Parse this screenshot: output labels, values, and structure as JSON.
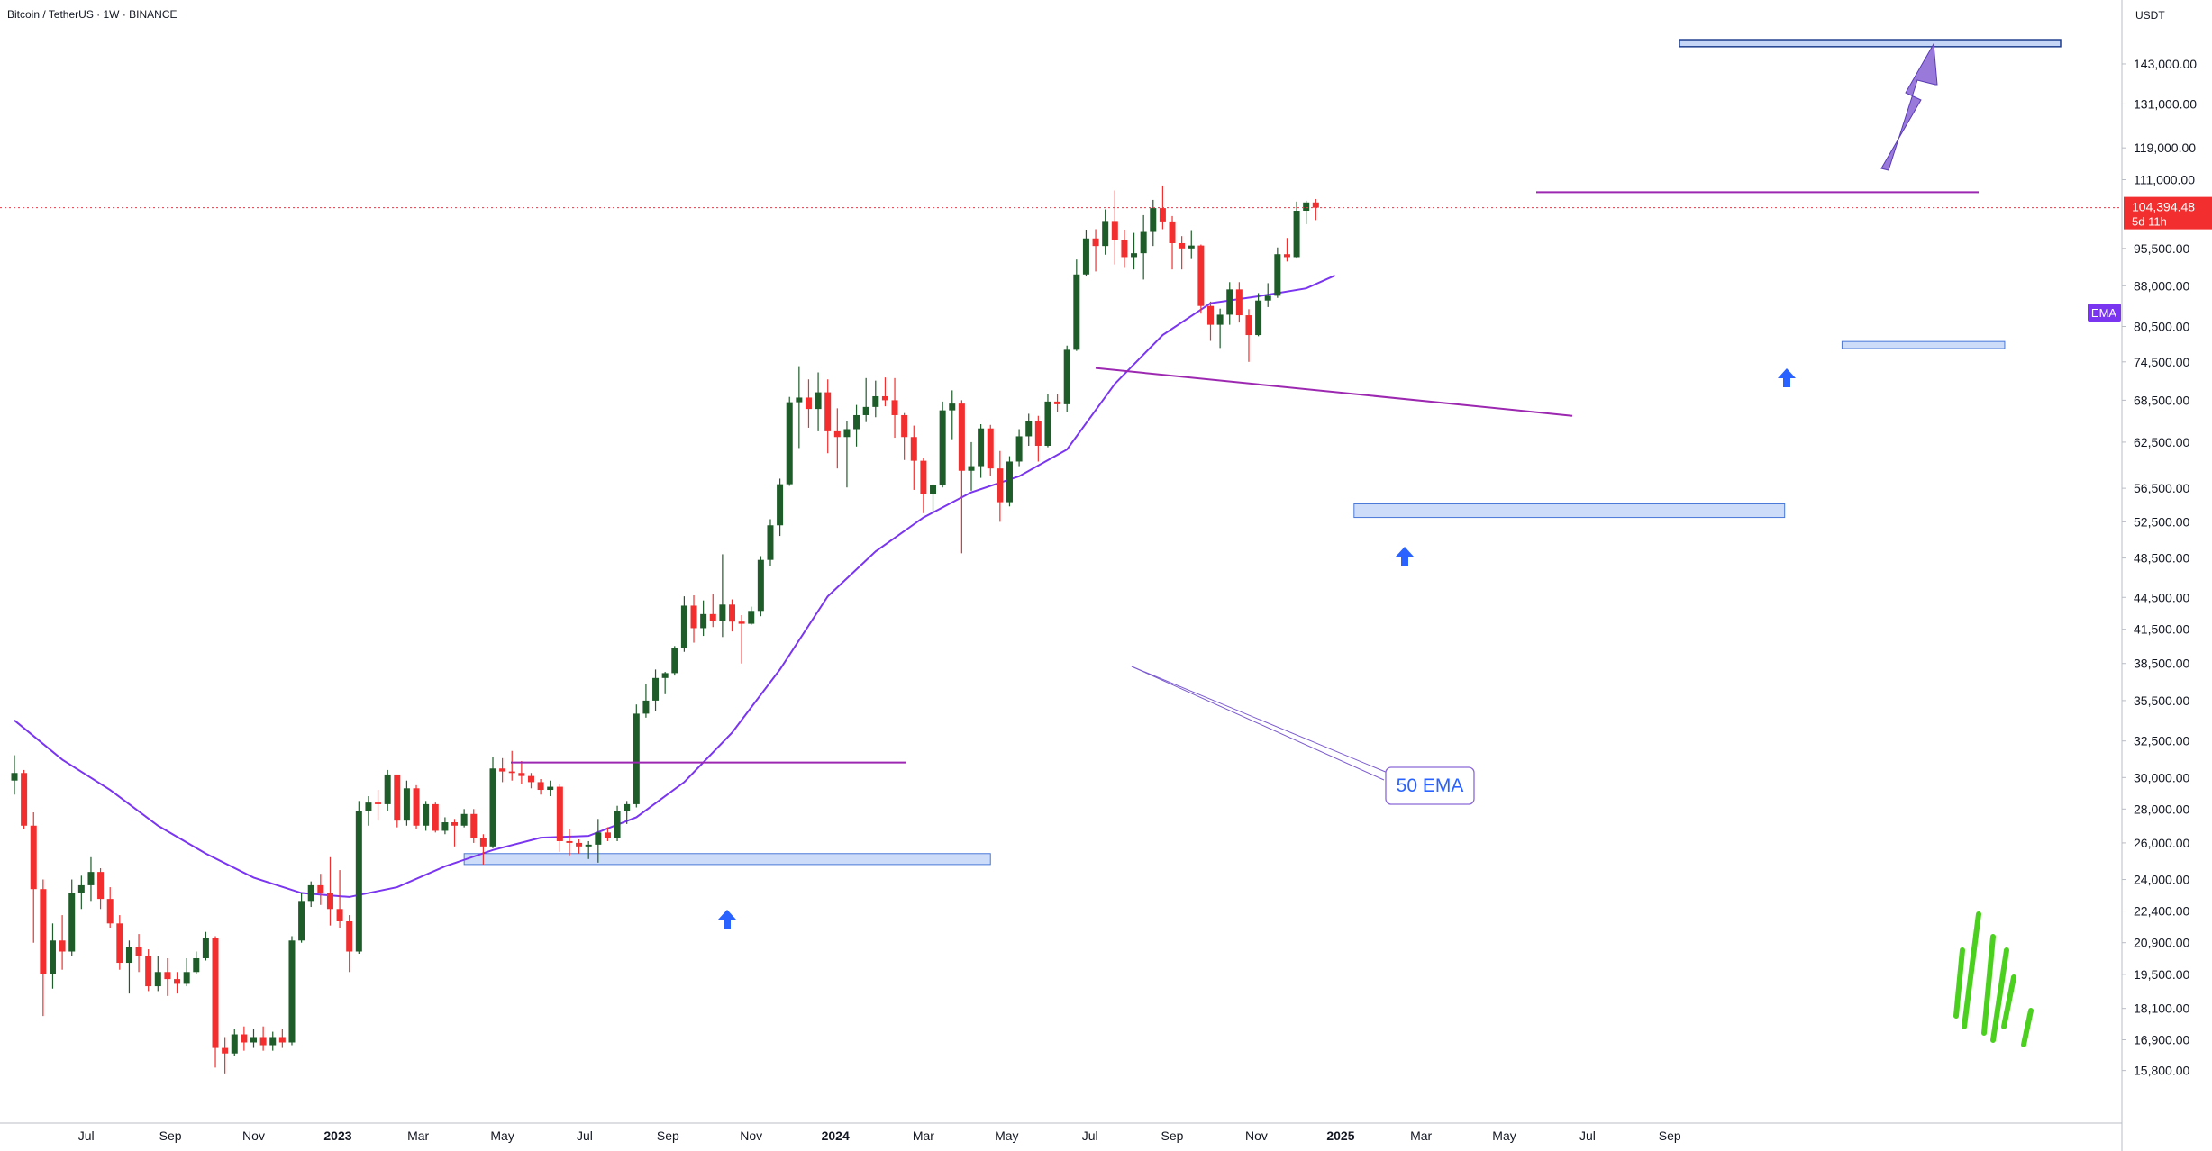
{
  "header": {
    "title": "Bitcoin / TetherUS · 1W · BINANCE"
  },
  "price_axis": {
    "currency": "USDT",
    "ticks": [
      "143,000.00",
      "131,000.00",
      "119,000.00",
      "111,000.00",
      "95,500.00",
      "88,000.00",
      "80,500.00",
      "74,500.00",
      "68,500.00",
      "62,500.00",
      "56,500.00",
      "52,500.00",
      "48,500.00",
      "44,500.00",
      "41,500.00",
      "38,500.00",
      "35,500.00",
      "32,500.00",
      "30,000.00",
      "28,000.00",
      "26,000.00",
      "24,000.00",
      "22,400.00",
      "20,900.00",
      "19,500.00",
      "18,100.00",
      "16,900.00",
      "15,800.00"
    ],
    "last_price_label": "104,394.48",
    "countdown_label": "5d 11h",
    "ema_tag": "EMA"
  },
  "time_axis": {
    "ticks": [
      "Jul",
      "Sep",
      "Nov",
      "2023",
      "Mar",
      "May",
      "Jul",
      "Sep",
      "Nov",
      "2024",
      "Mar",
      "May",
      "Jul",
      "Sep",
      "Nov",
      "2025",
      "Mar",
      "May",
      "Jul",
      "Sep"
    ],
    "bold_ticks": [
      "2023",
      "2024",
      "2025"
    ]
  },
  "annotations": {
    "ema_callout": "50 EMA"
  },
  "colors": {
    "up": "#1e5c2a",
    "down": "#f22e2e",
    "ema": "#7a35f0",
    "trendline": "#9c27b0",
    "zone_fill": "#bcd0f5",
    "zone_stroke": "#4a78d8",
    "support_arrow": "#2962ff",
    "target_arrow": "#8e6bd6",
    "price_line": "#f23645",
    "callout_text": "#2962ff",
    "watermark": "#4cd01f"
  },
  "chart_data": {
    "type": "candlestick",
    "scale": "log",
    "interval": "1W",
    "ylim": [
      15000,
      152000
    ],
    "last_price": 104394.48,
    "series": [
      {
        "name": "Bitcoin / TetherUS",
        "kind": "ohlc",
        "values": [
          [
            29800,
            31500,
            28900,
            30300
          ],
          [
            30300,
            30500,
            26800,
            27000
          ],
          [
            27000,
            27800,
            20900,
            23500
          ],
          [
            23500,
            24000,
            17800,
            19500
          ],
          [
            19500,
            21800,
            18900,
            21000
          ],
          [
            21000,
            22200,
            19700,
            20500
          ],
          [
            20500,
            24000,
            20300,
            23300
          ],
          [
            23300,
            24200,
            22500,
            23700
          ],
          [
            23700,
            25200,
            22900,
            24400
          ],
          [
            24400,
            24600,
            22500,
            23000
          ],
          [
            23000,
            23600,
            21600,
            21800
          ],
          [
            21800,
            22200,
            19700,
            20000
          ],
          [
            20000,
            21000,
            18700,
            20700
          ],
          [
            20700,
            21300,
            19600,
            20300
          ],
          [
            20300,
            20600,
            18800,
            19000
          ],
          [
            19000,
            20300,
            18800,
            19600
          ],
          [
            19600,
            20200,
            18600,
            19300
          ],
          [
            19300,
            19600,
            18700,
            19100
          ],
          [
            19100,
            20200,
            19000,
            19600
          ],
          [
            19600,
            20500,
            19500,
            20200
          ],
          [
            20200,
            21400,
            20100,
            21100
          ],
          [
            21100,
            21200,
            15900,
            16600
          ],
          [
            16600,
            17000,
            15700,
            16400
          ],
          [
            16400,
            17300,
            16300,
            17100
          ],
          [
            17100,
            17400,
            16500,
            16800
          ],
          [
            16800,
            17300,
            16600,
            17000
          ],
          [
            17000,
            17400,
            16500,
            16700
          ],
          [
            16700,
            17200,
            16500,
            17000
          ],
          [
            17000,
            17300,
            16600,
            16800
          ],
          [
            16800,
            21200,
            16700,
            21000
          ],
          [
            21000,
            23300,
            20900,
            22900
          ],
          [
            22900,
            23900,
            22600,
            23700
          ],
          [
            23700,
            24300,
            22700,
            23300
          ],
          [
            23300,
            25200,
            21700,
            22500
          ],
          [
            22500,
            24500,
            21600,
            21900
          ],
          [
            21900,
            22200,
            19600,
            20500
          ],
          [
            20500,
            28500,
            20400,
            27900
          ],
          [
            27900,
            28800,
            27000,
            28400
          ],
          [
            28400,
            29200,
            27300,
            28300
          ],
          [
            28300,
            30500,
            27900,
            30200
          ],
          [
            30200,
            30100,
            26900,
            27300
          ],
          [
            27300,
            29800,
            27000,
            29300
          ],
          [
            29300,
            29500,
            26800,
            27000
          ],
          [
            27000,
            28500,
            26700,
            28300
          ],
          [
            28300,
            28400,
            26600,
            26700
          ],
          [
            26700,
            27500,
            26500,
            27200
          ],
          [
            27200,
            27400,
            25800,
            27000
          ],
          [
            27000,
            28000,
            26900,
            27700
          ],
          [
            27700,
            28000,
            26000,
            26300
          ],
          [
            26300,
            26500,
            24800,
            25800
          ],
          [
            25800,
            31400,
            25700,
            30600
          ],
          [
            30600,
            31300,
            29700,
            30400
          ],
          [
            30400,
            31800,
            29800,
            30300
          ],
          [
            30300,
            31100,
            29600,
            30100
          ],
          [
            30100,
            30300,
            29300,
            29700
          ],
          [
            29700,
            29900,
            28900,
            29200
          ],
          [
            29200,
            29800,
            28800,
            29400
          ],
          [
            29400,
            29600,
            25500,
            26100
          ],
          [
            26100,
            26800,
            25300,
            26000
          ],
          [
            26000,
            26200,
            25400,
            25800
          ],
          [
            25800,
            26100,
            25100,
            25900
          ],
          [
            25900,
            27400,
            24900,
            26600
          ],
          [
            26600,
            26900,
            26100,
            26300
          ],
          [
            26300,
            28200,
            26100,
            27900
          ],
          [
            27900,
            28500,
            27100,
            28300
          ],
          [
            28300,
            35200,
            28100,
            34500
          ],
          [
            34500,
            36800,
            34200,
            35500
          ],
          [
            35500,
            38000,
            34700,
            37300
          ],
          [
            37300,
            37800,
            36000,
            37700
          ],
          [
            37700,
            40000,
            37500,
            39800
          ],
          [
            39800,
            44600,
            39500,
            43700
          ],
          [
            43700,
            44700,
            40300,
            41600
          ],
          [
            41600,
            44200,
            40900,
            42900
          ],
          [
            42900,
            44800,
            41700,
            42300
          ],
          [
            42300,
            48900,
            40800,
            43800
          ],
          [
            43800,
            44300,
            41300,
            42200
          ],
          [
            42200,
            42800,
            38500,
            42000
          ],
          [
            42000,
            43600,
            41900,
            43200
          ],
          [
            43200,
            48700,
            42700,
            48300
          ],
          [
            48300,
            52800,
            47700,
            52100
          ],
          [
            52100,
            57700,
            50900,
            57000
          ],
          [
            57000,
            69000,
            56800,
            68200
          ],
          [
            68200,
            73800,
            61700,
            68900
          ],
          [
            68900,
            71700,
            64500,
            67200
          ],
          [
            67200,
            72800,
            64000,
            69700
          ],
          [
            69700,
            71700,
            61000,
            64000
          ],
          [
            64000,
            67300,
            59000,
            63200
          ],
          [
            63200,
            65400,
            56600,
            64300
          ],
          [
            64300,
            67800,
            61900,
            66300
          ],
          [
            66300,
            71900,
            65300,
            67500
          ],
          [
            67500,
            71500,
            66000,
            69100
          ],
          [
            69100,
            72000,
            67600,
            68500
          ],
          [
            68500,
            71900,
            63100,
            66300
          ],
          [
            66300,
            66600,
            60100,
            63200
          ],
          [
            63200,
            64800,
            56300,
            60000
          ],
          [
            60000,
            60400,
            53500,
            55800
          ],
          [
            55800,
            57000,
            53600,
            56900
          ],
          [
            56900,
            68300,
            56600,
            67000
          ],
          [
            67000,
            70000,
            62900,
            68000
          ],
          [
            68000,
            68500,
            49000,
            58700
          ],
          [
            58700,
            62500,
            56200,
            59300
          ],
          [
            59300,
            65000,
            57800,
            64400
          ],
          [
            64400,
            64900,
            58000,
            59000
          ],
          [
            59000,
            61300,
            52500,
            54800
          ],
          [
            54800,
            60600,
            54300,
            59900
          ],
          [
            59900,
            64300,
            59300,
            63300
          ],
          [
            63300,
            66500,
            62000,
            65500
          ],
          [
            65500,
            66200,
            59900,
            62000
          ],
          [
            62000,
            69500,
            61800,
            68300
          ],
          [
            68300,
            69400,
            66800,
            67900
          ],
          [
            67900,
            77200,
            66800,
            76500
          ],
          [
            76500,
            93200,
            76300,
            90200
          ],
          [
            90200,
            99500,
            89800,
            97600
          ],
          [
            97600,
            99600,
            90800,
            96000
          ],
          [
            96000,
            104000,
            94200,
            101400
          ],
          [
            101400,
            108400,
            92200,
            97300
          ],
          [
            97300,
            99500,
            91500,
            93700
          ],
          [
            93700,
            98800,
            91200,
            94500
          ],
          [
            94500,
            102700,
            89200,
            99000
          ],
          [
            99000,
            106200,
            96000,
            104300
          ],
          [
            104300,
            109600,
            99600,
            101300
          ],
          [
            101300,
            102500,
            91200,
            96600
          ],
          [
            96600,
            98100,
            91200,
            95500
          ],
          [
            95500,
            99400,
            93300,
            96100
          ],
          [
            96100,
            96300,
            82800,
            84200
          ],
          [
            84200,
            85000,
            78000,
            80800
          ],
          [
            80800,
            83700,
            76800,
            82600
          ],
          [
            82600,
            88700,
            80800,
            87300
          ],
          [
            87300,
            88700,
            81200,
            82500
          ],
          [
            82500,
            83600,
            74500,
            79000
          ],
          [
            79000,
            86600,
            78800,
            85200
          ],
          [
            85200,
            88500,
            84000,
            86100
          ],
          [
            86100,
            95700,
            85700,
            94300
          ],
          [
            94300,
            97700,
            92800,
            93700
          ],
          [
            93700,
            105800,
            93400,
            103700
          ],
          [
            103700,
            106000,
            100700,
            105600
          ],
          [
            105600,
            106400,
            101600,
            104394
          ]
        ]
      },
      {
        "name": "EMA",
        "kind": "line",
        "weeks": [
          0,
          5,
          10,
          15,
          20,
          25,
          30,
          35,
          40,
          45,
          50,
          55,
          60,
          65,
          70,
          75,
          80,
          85,
          90,
          95,
          100,
          105,
          110,
          115,
          120,
          125,
          130,
          135,
          138
        ],
        "values": [
          34000,
          31200,
          29200,
          27000,
          25400,
          24100,
          23300,
          23100,
          23600,
          24700,
          25600,
          26300,
          26400,
          27500,
          29700,
          33100,
          38000,
          44600,
          49200,
          53000,
          56000,
          58000,
          61500,
          71000,
          79000,
          84700,
          86000,
          87500,
          90000
        ]
      }
    ],
    "levels": {
      "resistance": [
        31000,
        69500,
        108000
      ],
      "support_zones": [
        [
          24800,
          25400
        ],
        [
          53000,
          54600
        ],
        [
          76700,
          77900
        ]
      ],
      "target_zone": [
        148500,
        150800
      ]
    }
  }
}
